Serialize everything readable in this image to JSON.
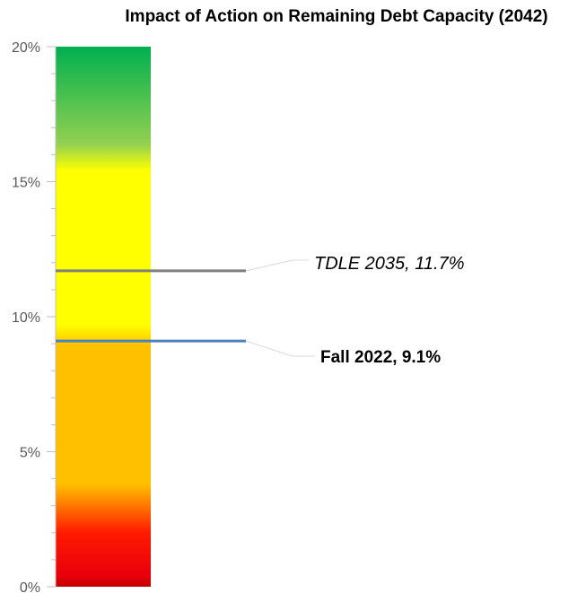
{
  "chart_data": {
    "type": "bar",
    "title": "Impact of Action on Remaining Debt Capacity (2042)",
    "xlabel": "",
    "ylabel": "",
    "ylim": [
      0,
      20
    ],
    "y_ticks": [
      "0%",
      "5%",
      "10%",
      "15%",
      "20%"
    ],
    "y_tick_values": [
      0,
      5,
      10,
      15,
      20
    ],
    "grid": false,
    "legend": "none",
    "gauge_bands": [
      {
        "from": 0,
        "to": 3,
        "color": "#e8000b"
      },
      {
        "from": 3,
        "to": 9.5,
        "color": "#ffc000"
      },
      {
        "from": 9.5,
        "to": 16,
        "color": "#ffff00"
      },
      {
        "from": 16,
        "to": 20,
        "color": "#00b050"
      }
    ],
    "markers": [
      {
        "label": "TDLE 2035, 11.7%",
        "value": 11.7,
        "color": "#7f7f7f",
        "style": "italic"
      },
      {
        "label": "Fall 2022, 9.1%",
        "value": 9.1,
        "color": "#4f81bd",
        "style": "bold"
      }
    ]
  }
}
